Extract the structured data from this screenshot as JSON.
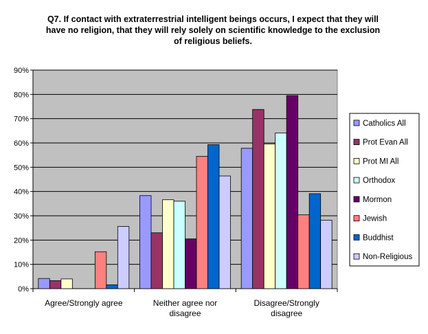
{
  "chart_data": {
    "type": "bar",
    "title": "Q7. If contact with extraterrestrial intelligent beings occurs, I expect that they will have no religion, that they will rely solely on scientific knowledge to the exclusion of religious beliefs.",
    "categories": [
      [
        "Agree/Strongly agree"
      ],
      [
        "Neither agree nor",
        "disagree"
      ],
      [
        "Disagree/Strongly",
        "disagree"
      ]
    ],
    "ylim": [
      0,
      90
    ],
    "yticks": [
      0,
      10,
      20,
      30,
      40,
      50,
      60,
      70,
      80,
      90
    ],
    "ytick_labels": [
      "0%",
      "10%",
      "20%",
      "30%",
      "40%",
      "50%",
      "60%",
      "70%",
      "80%",
      "90%"
    ],
    "grid": true,
    "legend_position": "right",
    "plot_background": "#c0c0c0",
    "series": [
      {
        "name": "Catholics All",
        "color": "#9999ff",
        "values": [
          4.2,
          38.3,
          57.8
        ]
      },
      {
        "name": "Prot Evan All",
        "color": "#993366",
        "values": [
          3.3,
          23.0,
          73.8
        ]
      },
      {
        "name": "Prot MI All",
        "color": "#ffffcc",
        "values": [
          4.0,
          36.6,
          59.6
        ]
      },
      {
        "name": "Orthodox",
        "color": "#ccffff",
        "values": [
          0,
          36.0,
          64.1
        ]
      },
      {
        "name": "Mormon",
        "color": "#660066",
        "values": [
          0,
          20.5,
          79.5
        ]
      },
      {
        "name": "Jewish",
        "color": "#ff8080",
        "values": [
          15.2,
          54.5,
          30.4
        ]
      },
      {
        "name": "Buddhist",
        "color": "#0066cc",
        "values": [
          1.6,
          59.3,
          39.1
        ]
      },
      {
        "name": "Non-Religious",
        "color": "#ccccff",
        "values": [
          25.6,
          46.4,
          28.2
        ]
      }
    ]
  }
}
